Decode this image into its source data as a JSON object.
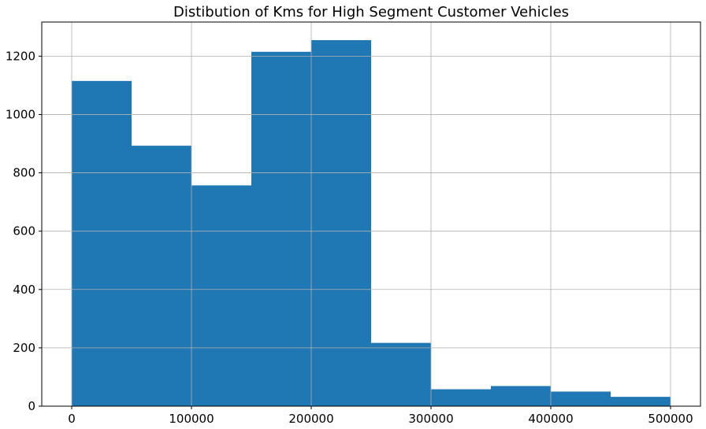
{
  "chart_data": {
    "type": "bar",
    "title": "Distibution of Kms for High Segment Customer Vehicles",
    "xlabel": "",
    "ylabel": "",
    "bin_edges": [
      0,
      50000,
      100000,
      150000,
      200000,
      250000,
      300000,
      350000,
      400000,
      450000,
      500000
    ],
    "values": [
      1115,
      893,
      757,
      1215,
      1255,
      217,
      58,
      69,
      50,
      32
    ],
    "xticks": [
      0,
      100000,
      200000,
      300000,
      400000,
      500000
    ],
    "yticks": [
      0,
      200,
      400,
      600,
      800,
      1000,
      1200
    ],
    "xlim": [
      -25000,
      525000
    ],
    "ylim": [
      0,
      1317
    ],
    "grid": true,
    "bar_color": "#1f77b4",
    "grid_color": "#b0b0b0"
  }
}
